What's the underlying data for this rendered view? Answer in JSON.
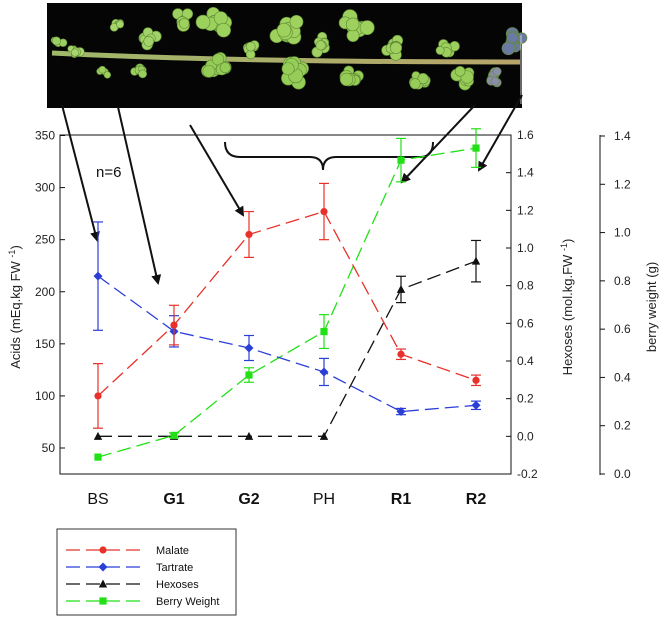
{
  "chart_data": {
    "type": "line",
    "categories": [
      "BS",
      "G1",
      "G2",
      "PH",
      "R1",
      "R2"
    ],
    "bold_categories": [
      "G1",
      "G2",
      "R1",
      "R2"
    ],
    "annotation": "n=6",
    "axes": {
      "left": {
        "label": "Acids (mEq.kg FW⁻¹)",
        "ylim": [
          30,
          350
        ],
        "ticks": [
          50,
          100,
          150,
          200,
          250,
          300,
          350
        ]
      },
      "right1": {
        "label": "Hexoses (mol.kg.FW⁻¹)",
        "ylim": [
          -0.2,
          1.6
        ],
        "ticks": [
          -0.2,
          0.0,
          0.2,
          0.4,
          0.6,
          0.8,
          1.0,
          1.2,
          1.4,
          1.6
        ]
      },
      "right2": {
        "label": "berry weight (g)",
        "ylim": [
          0.0,
          1.4
        ],
        "ticks": [
          0.0,
          0.2,
          0.4,
          0.6,
          0.8,
          1.0,
          1.2,
          1.4
        ]
      }
    },
    "series": [
      {
        "name": "Malate",
        "axis": "left",
        "color": "#e8312a",
        "marker": "circle",
        "values": [
          100,
          168,
          255,
          277,
          140,
          115
        ],
        "errors": [
          31,
          19,
          22,
          27,
          5,
          5
        ]
      },
      {
        "name": "Tartrate",
        "axis": "left",
        "color": "#2b3fd6",
        "marker": "diamond",
        "values": [
          215,
          162,
          146,
          123,
          85,
          91
        ],
        "errors": [
          52,
          15,
          12,
          13,
          3,
          4
        ]
      },
      {
        "name": "Hexoses",
        "axis": "right1",
        "color": "#111111",
        "marker": "triangle",
        "values": [
          0.0,
          0.0,
          0.0,
          0.0,
          0.78,
          0.93
        ],
        "errors": [
          0,
          0,
          0,
          0,
          0.07,
          0.11
        ]
      },
      {
        "name": "Berry Weight",
        "axis": "right2",
        "color": "#22e016",
        "marker": "square",
        "values": [
          0.07,
          0.16,
          0.41,
          0.59,
          1.3,
          1.35
        ],
        "errors": [
          0,
          0.01,
          0.03,
          0.07,
          0.09,
          0.08
        ]
      }
    ],
    "legend": "bottom-left",
    "grid": false
  }
}
